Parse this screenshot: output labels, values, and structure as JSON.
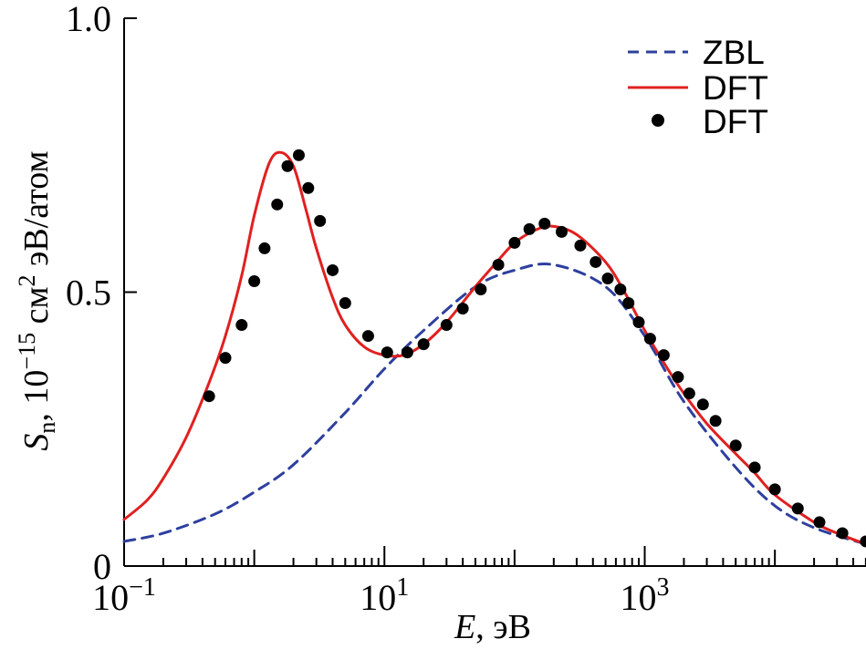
{
  "chart_data": {
    "type": "line",
    "x_scale": "log",
    "xlim_log10": [
      -1,
      4.7
    ],
    "ylim": [
      0,
      1.0
    ],
    "xlabel": {
      "symbol": "E",
      "unit": ", эВ"
    },
    "ylabel": {
      "symbol": "S",
      "subscript": "n",
      "unit_prefix": ", 10",
      "exponent": "−15",
      "unit_cm": " см",
      "cm_exp": "2",
      "unit_suffix": " эВ/атом"
    },
    "x_ticks": [
      {
        "log10": -1,
        "base": "10",
        "exp": "−1"
      },
      {
        "log10": 1,
        "base": "10",
        "exp": "1"
      },
      {
        "log10": 3,
        "base": "10",
        "exp": "3"
      }
    ],
    "y_ticks": [
      {
        "value": 0,
        "label": "0"
      },
      {
        "value": 0.5,
        "label": "0.5"
      },
      {
        "value": 1.0,
        "label": "1.0"
      }
    ],
    "legend": {
      "position": "top-right",
      "entries": [
        "ZBL",
        "DFT",
        "DFT"
      ]
    },
    "series": [
      {
        "name": "ZBL",
        "style": "dashed",
        "color": "#2e3f9e",
        "x": [
          0.1,
          0.2,
          0.5,
          1,
          2,
          5,
          10,
          20,
          50,
          100,
          200,
          500,
          1000,
          2000,
          5000,
          10000,
          20000,
          50000
        ],
        "y": [
          0.045,
          0.06,
          0.095,
          0.135,
          0.185,
          0.28,
          0.36,
          0.43,
          0.51,
          0.54,
          0.55,
          0.51,
          0.42,
          0.3,
          0.18,
          0.11,
          0.07,
          0.04
        ]
      },
      {
        "name": "DFT",
        "style": "solid",
        "color": "#e02020",
        "x": [
          0.1,
          0.15,
          0.2,
          0.3,
          0.45,
          0.6,
          0.8,
          1.0,
          1.3,
          1.6,
          2.0,
          2.5,
          3.0,
          4.0,
          5.0,
          7.0,
          10,
          14,
          20,
          30,
          50,
          70,
          100,
          150,
          200,
          300,
          500,
          700,
          1000,
          1500,
          2000,
          3000,
          5000,
          7000,
          10000,
          20000,
          30000,
          50000
        ],
        "y": [
          0.085,
          0.12,
          0.16,
          0.235,
          0.335,
          0.42,
          0.53,
          0.64,
          0.735,
          0.755,
          0.73,
          0.65,
          0.58,
          0.49,
          0.44,
          0.4,
          0.385,
          0.385,
          0.405,
          0.445,
          0.51,
          0.55,
          0.59,
          0.615,
          0.62,
          0.605,
          0.555,
          0.5,
          0.43,
          0.36,
          0.315,
          0.26,
          0.205,
          0.17,
          0.13,
          0.08,
          0.06,
          0.04
        ]
      },
      {
        "name": "DFT",
        "style": "markers",
        "color": "#000000",
        "x": [
          0.45,
          0.6,
          0.8,
          1.0,
          1.2,
          1.5,
          1.8,
          2.2,
          2.6,
          3.2,
          4.0,
          5.0,
          7.5,
          10.5,
          15,
          20,
          30,
          40,
          55,
          75,
          100,
          130,
          170,
          230,
          320,
          420,
          520,
          650,
          750,
          900,
          1100,
          1400,
          1800,
          2200,
          2800,
          3500,
          5000,
          7000,
          10000,
          15000,
          22000,
          33000,
          50000
        ],
        "y": [
          0.31,
          0.38,
          0.44,
          0.52,
          0.58,
          0.66,
          0.73,
          0.75,
          0.69,
          0.63,
          0.54,
          0.48,
          0.42,
          0.39,
          0.39,
          0.405,
          0.44,
          0.47,
          0.505,
          0.55,
          0.59,
          0.615,
          0.625,
          0.61,
          0.585,
          0.555,
          0.525,
          0.505,
          0.48,
          0.445,
          0.415,
          0.385,
          0.345,
          0.315,
          0.295,
          0.265,
          0.22,
          0.18,
          0.14,
          0.105,
          0.08,
          0.06,
          0.045
        ]
      }
    ]
  }
}
